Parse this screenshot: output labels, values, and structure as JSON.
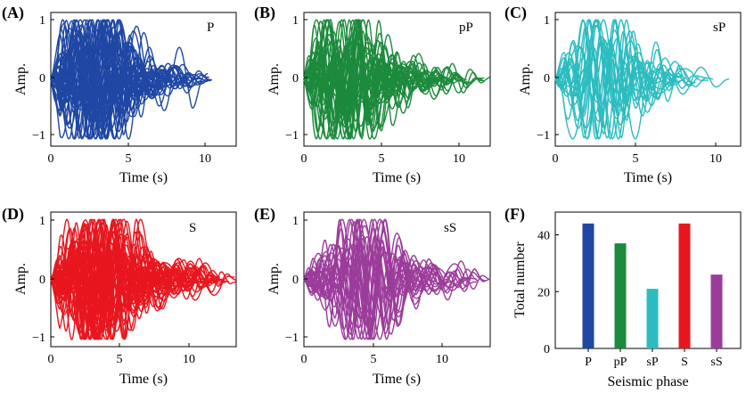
{
  "figure": {
    "panels": [
      {
        "letter": "(A)",
        "phase": "P",
        "color": "#1f47a3",
        "ylabel": "Amp.",
        "xlabel": "Time (s)",
        "xticks": [
          "0",
          "5",
          "10"
        ],
        "yticks": [
          "1",
          "0",
          "−1"
        ]
      },
      {
        "letter": "(B)",
        "phase": "pP",
        "color": "#1c8a3c",
        "ylabel": "Amp.",
        "xlabel": "Time (s)",
        "xticks": [
          "0",
          "5",
          "10"
        ],
        "yticks": [
          "1",
          "0",
          "−1"
        ]
      },
      {
        "letter": "(C)",
        "phase": "sP",
        "color": "#2cbcc0",
        "ylabel": "Amp.",
        "xlabel": "Time (s)",
        "xticks": [
          "0",
          "5",
          "10"
        ],
        "yticks": [
          "1",
          "0",
          "−1"
        ]
      },
      {
        "letter": "(D)",
        "phase": "S",
        "color": "#e8161e",
        "ylabel": "Amp.",
        "xlabel": "Time (s)",
        "xticks": [
          "0",
          "5",
          "10"
        ],
        "yticks": [
          "1",
          "0",
          "−1"
        ]
      },
      {
        "letter": "(E)",
        "phase": "sS",
        "color": "#9b3c9a",
        "ylabel": "Amp.",
        "xlabel": "Time (s)",
        "xticks": [
          "0",
          "5",
          "10"
        ],
        "yticks": [
          "1",
          "0",
          "−1"
        ]
      }
    ],
    "bar_panel_letter": "(F)"
  },
  "chart_data": [
    {
      "type": "line",
      "panel": "A",
      "phase": "P",
      "trace_count": 44,
      "xlim": [
        0,
        12
      ],
      "ylim": [
        -1.1,
        1.1
      ],
      "xlabel": "Time (s)",
      "ylabel": "Amp.",
      "seed": 11,
      "duration_range": [
        5.5,
        10.5
      ],
      "peak_time": 2.8
    },
    {
      "type": "line",
      "panel": "B",
      "phase": "pP",
      "trace_count": 37,
      "xlim": [
        0,
        12
      ],
      "ylim": [
        -1.1,
        1.1
      ],
      "xlabel": "Time (s)",
      "ylabel": "Amp.",
      "seed": 23,
      "duration_range": [
        5.5,
        12.0
      ],
      "peak_time": 2.8
    },
    {
      "type": "line",
      "panel": "C",
      "phase": "sP",
      "trace_count": 21,
      "xlim": [
        0,
        11.5
      ],
      "ylim": [
        -1.1,
        1.1
      ],
      "xlabel": "Time (s)",
      "ylabel": "Amp.",
      "seed": 37,
      "duration_range": [
        6.0,
        11.5
      ],
      "peak_time": 3.0
    },
    {
      "type": "line",
      "panel": "D",
      "phase": "S",
      "trace_count": 44,
      "xlim": [
        0,
        12.5
      ],
      "ylim": [
        -1.1,
        1.1
      ],
      "xlabel": "Time (s)",
      "ylabel": "Amp.",
      "seed": 41,
      "duration_range": [
        7.0,
        12.5
      ],
      "peak_time": 3.5
    },
    {
      "type": "line",
      "panel": "E",
      "phase": "sS",
      "trace_count": 26,
      "xlim": [
        0,
        12.5
      ],
      "ylim": [
        -1.1,
        1.1
      ],
      "xlabel": "Time (s)",
      "ylabel": "Amp.",
      "seed": 53,
      "duration_range": [
        7.0,
        12.5
      ],
      "peak_time": 4.2
    },
    {
      "type": "bar",
      "panel": "F",
      "categories": [
        "P",
        "pP",
        "sP",
        "S",
        "sS"
      ],
      "values": [
        44,
        37,
        21,
        44,
        26
      ],
      "colors": [
        "#1f47a3",
        "#1c8a3c",
        "#2cbcc0",
        "#e8161e",
        "#9b3c9a"
      ],
      "xlabel": "Seismic phase",
      "ylabel": "Total number",
      "ylim": [
        0,
        48
      ],
      "yticks": [
        "0",
        "20",
        "40"
      ]
    }
  ]
}
